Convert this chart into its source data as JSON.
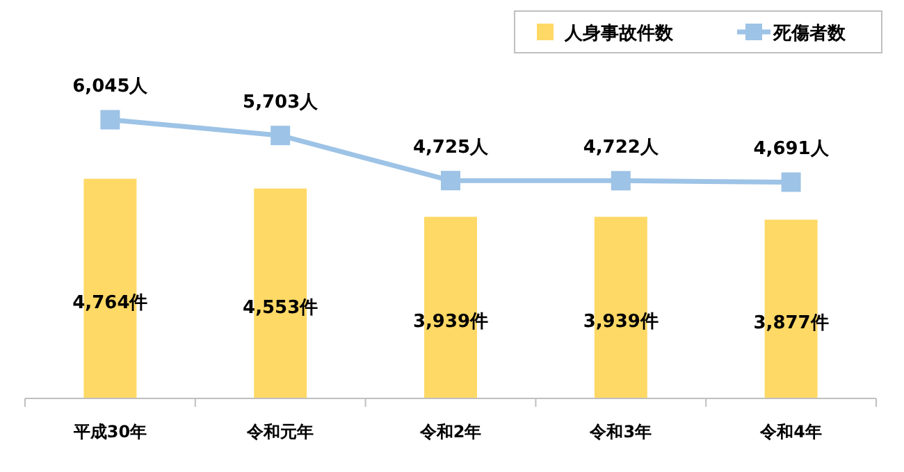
{
  "chart_data": {
    "type": "bar",
    "categories": [
      "平成30年",
      "令和元年",
      "令和2年",
      "令和3年",
      "令和4年"
    ],
    "series": [
      {
        "name": "人身事故件数",
        "color": "#ffd966",
        "values": [
          4764,
          4553,
          3939,
          3939,
          3877
        ],
        "value_labels": [
          "4,764件",
          "4,553件",
          "3,939件",
          "3,939件",
          "3,877件"
        ]
      },
      {
        "name": "死傷者数",
        "type": "line",
        "color": "#9dc3e6",
        "marker": "square",
        "values": [
          6045,
          5703,
          4725,
          4722,
          4691
        ],
        "value_labels": [
          "6,045人",
          "5,703人",
          "4,725人",
          "4,722人",
          "4,691人"
        ]
      }
    ],
    "grid": false,
    "legend": "top right"
  }
}
